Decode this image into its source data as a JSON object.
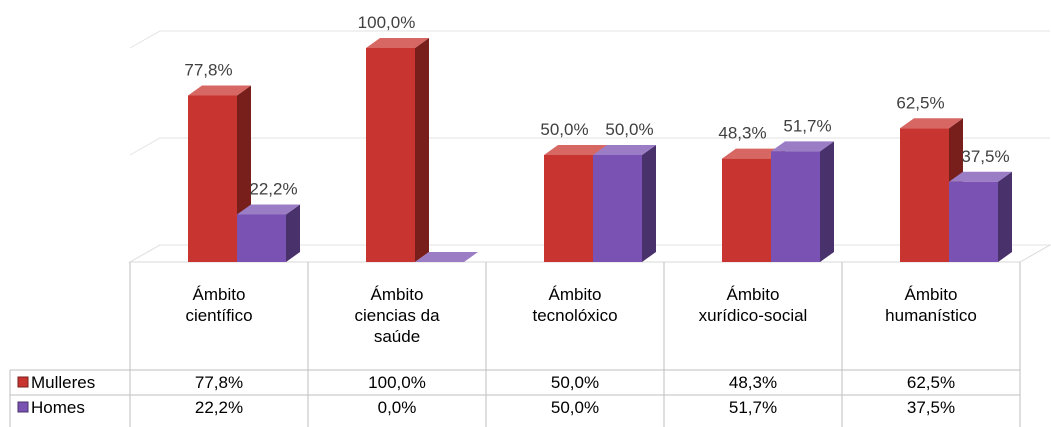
{
  "chart_data": {
    "type": "bar3d",
    "categories": [
      "Ámbito científico",
      "Ámbito ciencias da saúde",
      "Ámbito tecnolóxico",
      "Ámbito xurídico-social",
      "Ámbito humanístico"
    ],
    "series": [
      {
        "name": "Mulleres",
        "color": "#c8342f",
        "values": [
          77.8,
          100,
          50,
          48.3,
          62.5
        ],
        "value_labels": [
          "77,8%",
          "100,0%",
          "50,0%",
          "48,3%",
          "62,5%"
        ]
      },
      {
        "name": "Homes",
        "color": "#7a52b3",
        "values": [
          22.2,
          0,
          50,
          51.7,
          37.5
        ],
        "value_labels": [
          "22,2%",
          "0,0%",
          "50,0%",
          "51,7%",
          "37,5%"
        ]
      }
    ],
    "ylim": [
      0,
      100
    ],
    "yticks": [
      0,
      50,
      100
    ],
    "grid": true,
    "data_table": true
  }
}
